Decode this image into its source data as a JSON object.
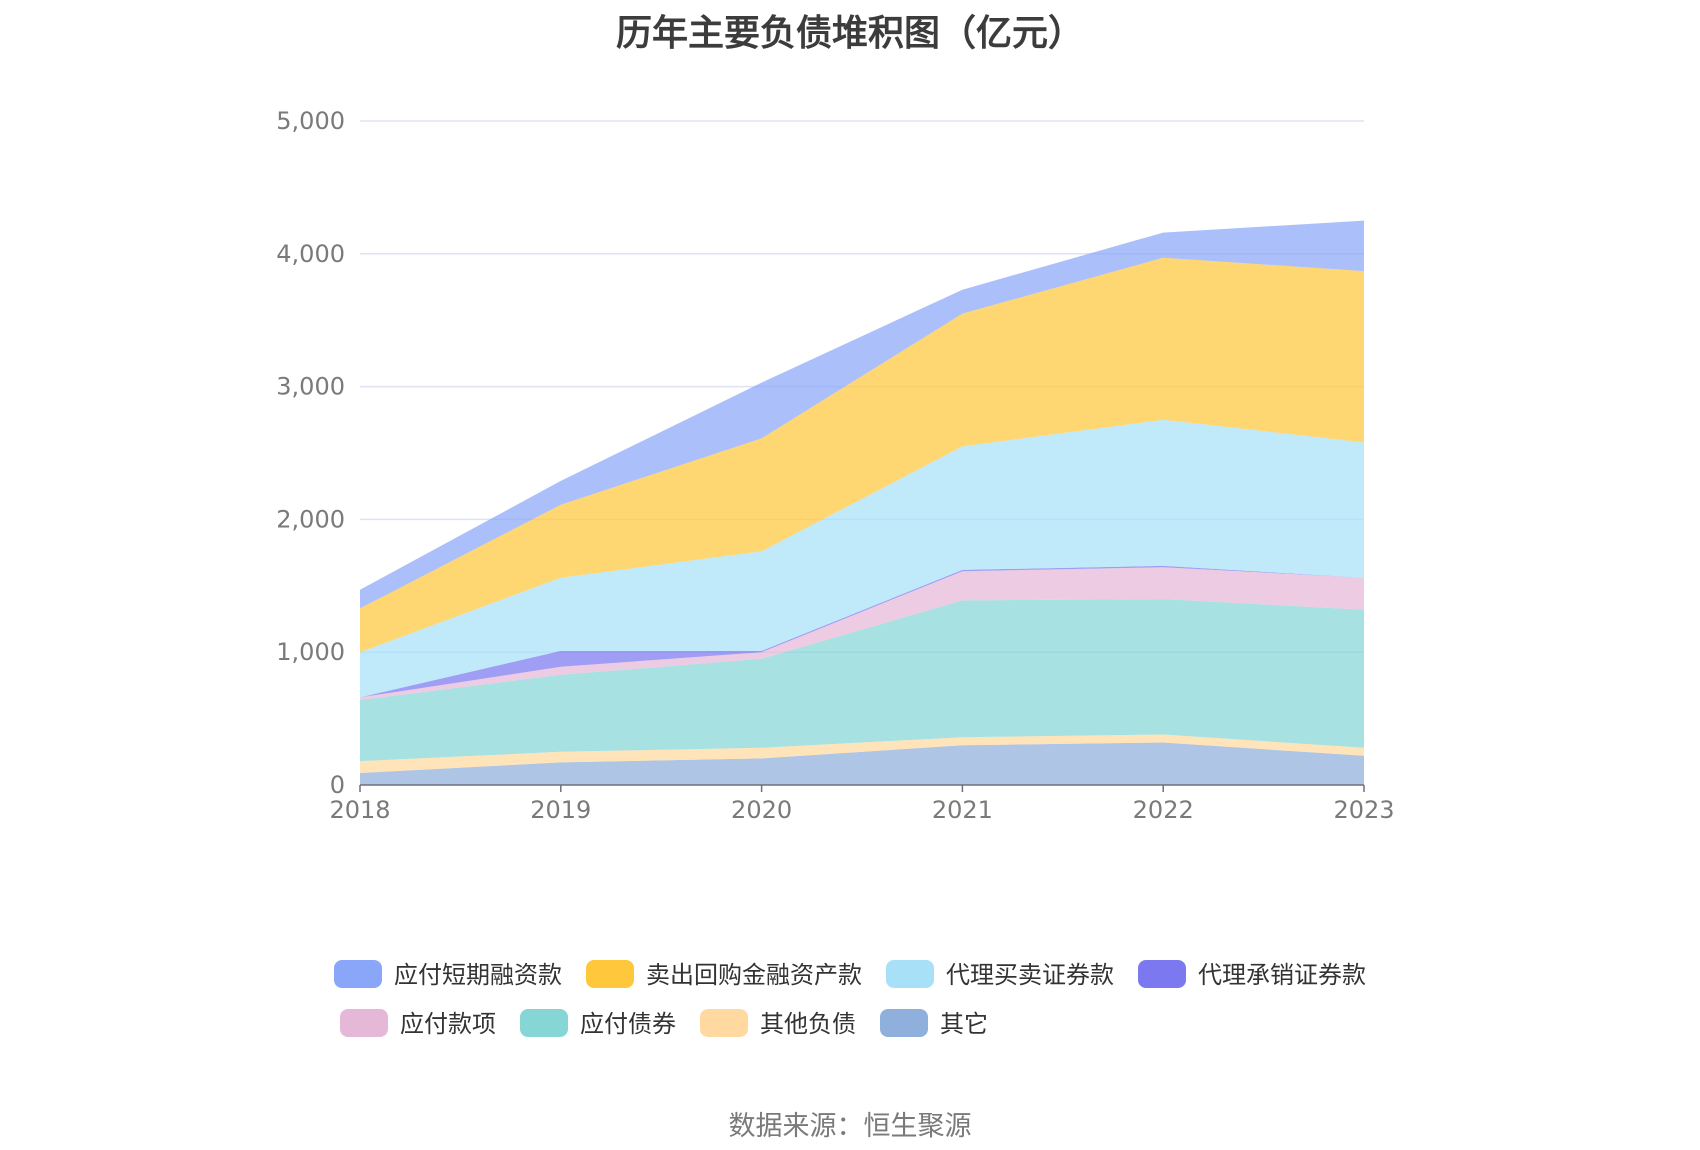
{
  "chart_data": {
    "type": "area",
    "stacked": true,
    "title": "历年主要负债堆积图（亿元）",
    "source": "数据来源：恒生聚源",
    "xlabel": "",
    "ylabel": "",
    "categories": [
      "2018",
      "2019",
      "2020",
      "2021",
      "2022",
      "2023"
    ],
    "ylim": [
      0,
      5000
    ],
    "yticks": [
      0,
      1000,
      2000,
      3000,
      4000,
      5000
    ],
    "ytick_labels": [
      "0",
      "1,000",
      "2,000",
      "3,000",
      "4,000",
      "5,000"
    ],
    "grid": true,
    "legend_position": "bottom",
    "series": [
      {
        "name": "其它",
        "color": "#8fafdc",
        "values": [
          90,
          170,
          200,
          300,
          320,
          220
        ]
      },
      {
        "name": "其他负债",
        "color": "#ffd9a0",
        "values": [
          90,
          80,
          80,
          60,
          60,
          60
        ]
      },
      {
        "name": "应付债券",
        "color": "#86d6d5",
        "values": [
          460,
          580,
          670,
          1030,
          1020,
          1040
        ]
      },
      {
        "name": "应付款项",
        "color": "#e6b8d8",
        "values": [
          20,
          60,
          50,
          220,
          240,
          240
        ]
      },
      {
        "name": "代理承销证券款",
        "color": "#7b78f0",
        "values": [
          0,
          120,
          10,
          10,
          10,
          0
        ]
      },
      {
        "name": "代理买卖证券款",
        "color": "#a8e0f8",
        "values": [
          340,
          550,
          750,
          930,
          1100,
          1020
        ]
      },
      {
        "name": "卖出回购金融资产款",
        "color": "#ffc83c",
        "values": [
          330,
          550,
          850,
          1000,
          1220,
          1290
        ]
      },
      {
        "name": "应付短期融资款",
        "color": "#8aa6f8",
        "values": [
          140,
          180,
          420,
          180,
          190,
          380
        ]
      }
    ],
    "legend_order": [
      "应付短期融资款",
      "卖出回购金融资产款",
      "代理买卖证券款",
      "代理承销证券款",
      "应付款项",
      "应付债券",
      "其他负债",
      "其它"
    ]
  }
}
